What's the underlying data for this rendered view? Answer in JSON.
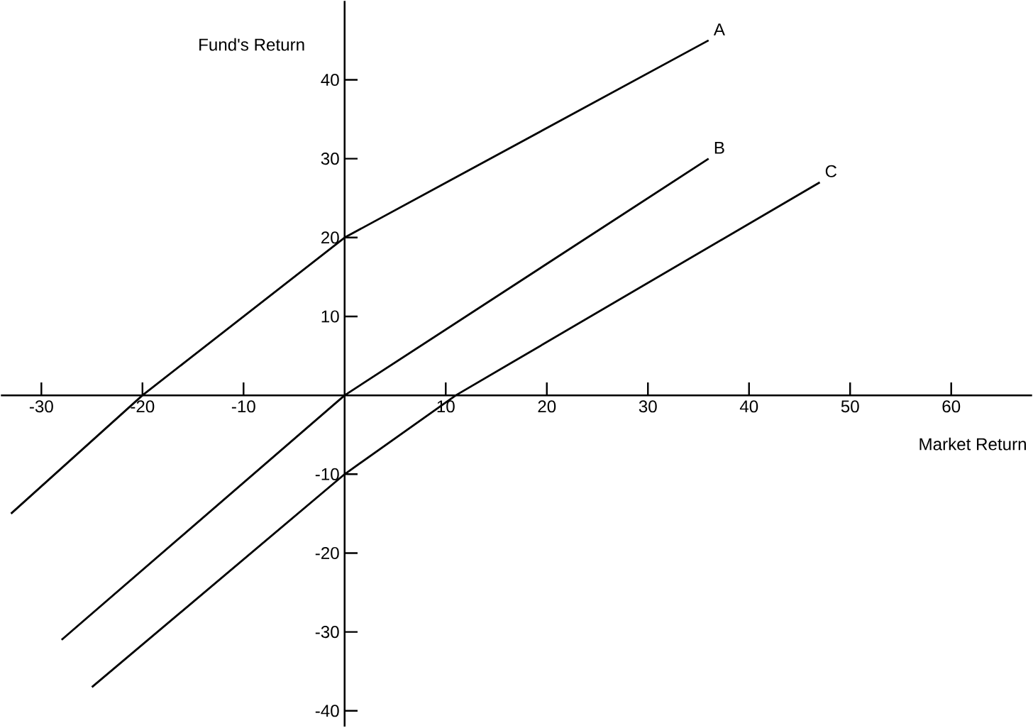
{
  "chart_data": {
    "type": "line",
    "xlabel": "Market Return",
    "ylabel": "Fund's Return",
    "xlim": [
      -34,
      68
    ],
    "ylim": [
      -42,
      50
    ],
    "xticks": [
      -30,
      -20,
      -10,
      10,
      20,
      30,
      40,
      50,
      60
    ],
    "yticks": [
      -40,
      -30,
      -20,
      -10,
      10,
      20,
      30,
      40
    ],
    "grid": false,
    "marker": "none",
    "line_style": "solid",
    "series": [
      {
        "name": "A",
        "color": "#000000",
        "x": [
          -33,
          -20,
          0,
          36
        ],
        "values": [
          -15,
          0,
          20,
          45
        ]
      },
      {
        "name": "B",
        "color": "#000000",
        "x": [
          -28,
          0,
          36
        ],
        "values": [
          -31,
          0,
          30
        ]
      },
      {
        "name": "C",
        "color": "#000000",
        "x": [
          -25,
          0,
          11,
          47
        ],
        "values": [
          -37,
          -10,
          0,
          27
        ]
      }
    ]
  }
}
